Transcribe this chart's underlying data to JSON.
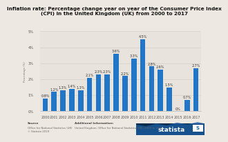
{
  "title_line1": "Inflation rate: Percentage change year on year of the Consumer Price Index",
  "title_line2": "(CPI) in the United Kingdom (UK) from 2000 to 2017",
  "years": [
    "2000",
    "2001",
    "2002",
    "2003",
    "2004",
    "2005",
    "2006",
    "2007",
    "2008",
    "2009",
    "2010",
    "2011",
    "2012",
    "2013",
    "2014",
    "2015",
    "2016",
    "2017"
  ],
  "values": [
    0.8,
    1.2,
    1.3,
    1.4,
    1.3,
    2.1,
    2.3,
    2.3,
    3.6,
    2.2,
    3.3,
    4.5,
    2.8,
    2.6,
    1.5,
    0.0,
    0.7,
    2.7
  ],
  "bar_color": "#2176c7",
  "bg_color": "#ede8e1",
  "plot_bg_color": "#e8e3dc",
  "grid_color": "#d4cfc8",
  "ylabel": "Percentage (%)",
  "ylim": [
    0,
    5
  ],
  "yticks": [
    0,
    1,
    2,
    3,
    4,
    5
  ],
  "ytick_labels": [
    "0%",
    "1%",
    "2%",
    "3%",
    "4%",
    "5%"
  ],
  "source_text": "Source",
  "source_detail": "Office for National Statistics (UK)\n© Statista 2019",
  "add_info_label": "Additional Information:",
  "add_info_detail": "United Kingdom; Office for National Statistics (UK); 2000 to 2017",
  "statista_color": "#1a5fa8",
  "statista_dark": "#0d2d4e",
  "title_fontsize": 5.2,
  "label_fontsize": 3.5,
  "tick_fontsize": 3.8,
  "footer_fontsize": 2.8
}
